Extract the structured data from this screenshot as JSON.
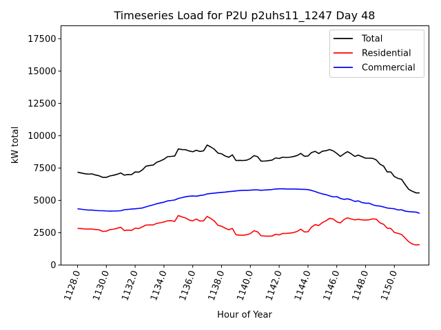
{
  "chart_data": {
    "type": "line",
    "title": "Timeseries Load for P2U p2uhs11_1247  Day 48",
    "xlabel": "Hour of Year",
    "ylabel": "kW total",
    "xlim": [
      1126.85,
      1152.4
    ],
    "ylim": [
      0,
      18500
    ],
    "x_ticks": [
      1128,
      1130,
      1132,
      1134,
      1136,
      1138,
      1140,
      1142,
      1144,
      1146,
      1148,
      1150
    ],
    "x_tick_labels": [
      "1128.0",
      "1130.0",
      "1132.0",
      "1134.0",
      "1136.0",
      "1138.0",
      "1140.0",
      "1142.0",
      "1144.0",
      "1146.0",
      "1148.0",
      "1150.0"
    ],
    "y_ticks": [
      0,
      2500,
      5000,
      7500,
      10000,
      12500,
      15000,
      17500
    ],
    "y_tick_labels": [
      "0",
      "2500",
      "5000",
      "7500",
      "10000",
      "12500",
      "15000",
      "17500"
    ],
    "legend_position": "top-right",
    "x": [
      1128.0,
      1128.25,
      1128.5,
      1128.75,
      1129.0,
      1129.25,
      1129.5,
      1129.75,
      1130.0,
      1130.25,
      1130.5,
      1130.75,
      1131.0,
      1131.25,
      1131.5,
      1131.75,
      1132.0,
      1132.25,
      1132.5,
      1132.75,
      1133.0,
      1133.25,
      1133.5,
      1133.75,
      1134.0,
      1134.25,
      1134.5,
      1134.75,
      1135.0,
      1135.25,
      1135.5,
      1135.75,
      1136.0,
      1136.25,
      1136.5,
      1136.75,
      1137.0,
      1137.25,
      1137.5,
      1137.75,
      1138.0,
      1138.25,
      1138.5,
      1138.75,
      1139.0,
      1139.25,
      1139.5,
      1139.75,
      1140.0,
      1140.25,
      1140.5,
      1140.75,
      1141.0,
      1141.25,
      1141.5,
      1141.75,
      1142.0,
      1142.25,
      1142.5,
      1142.75,
      1143.0,
      1143.25,
      1143.5,
      1143.75,
      1144.0,
      1144.25,
      1144.5,
      1144.75,
      1145.0,
      1145.25,
      1145.5,
      1145.75,
      1146.0,
      1146.25,
      1146.5,
      1146.75,
      1147.0,
      1147.25,
      1147.5,
      1147.75,
      1148.0,
      1148.25,
      1148.5,
      1148.75,
      1149.0,
      1149.25,
      1149.5,
      1149.75,
      1150.0,
      1150.25,
      1150.5,
      1150.75,
      1151.0,
      1151.25,
      1151.5,
      1151.75
    ],
    "series": [
      {
        "name": "Total",
        "color": "#000000",
        "values": [
          7180,
          7120,
          7060,
          7030,
          7050,
          6960,
          6900,
          6780,
          6780,
          6890,
          6940,
          7020,
          7120,
          6950,
          7000,
          6990,
          7200,
          7180,
          7350,
          7640,
          7700,
          7730,
          7950,
          8050,
          8180,
          8380,
          8400,
          8430,
          8980,
          8930,
          8920,
          8820,
          8760,
          8880,
          8780,
          8830,
          9280,
          9130,
          8950,
          8660,
          8600,
          8430,
          8330,
          8520,
          8080,
          8090,
          8080,
          8110,
          8230,
          8460,
          8380,
          8030,
          8040,
          8070,
          8110,
          8280,
          8240,
          8340,
          8320,
          8340,
          8390,
          8470,
          8630,
          8410,
          8430,
          8700,
          8790,
          8620,
          8800,
          8840,
          8930,
          8830,
          8630,
          8400,
          8600,
          8770,
          8600,
          8400,
          8500,
          8380,
          8260,
          8260,
          8250,
          8120,
          7800,
          7650,
          7200,
          7200,
          6840,
          6700,
          6630,
          6220,
          5850,
          5700,
          5580,
          5580
        ]
      },
      {
        "name": "Residential",
        "color": "#ff0000",
        "values": [
          2830,
          2820,
          2790,
          2780,
          2780,
          2750,
          2720,
          2600,
          2620,
          2740,
          2770,
          2840,
          2920,
          2660,
          2700,
          2680,
          2850,
          2820,
          2950,
          3090,
          3100,
          3100,
          3220,
          3270,
          3330,
          3420,
          3430,
          3380,
          3830,
          3720,
          3640,
          3480,
          3420,
          3560,
          3400,
          3420,
          3760,
          3600,
          3400,
          3070,
          3000,
          2850,
          2730,
          2830,
          2340,
          2310,
          2310,
          2340,
          2430,
          2650,
          2570,
          2260,
          2240,
          2230,
          2240,
          2380,
          2330,
          2440,
          2450,
          2470,
          2510,
          2600,
          2770,
          2560,
          2570,
          2940,
          3120,
          3060,
          3280,
          3420,
          3610,
          3560,
          3340,
          3260,
          3520,
          3650,
          3560,
          3490,
          3540,
          3490,
          3480,
          3500,
          3570,
          3540,
          3260,
          3150,
          2850,
          2830,
          2520,
          2450,
          2360,
          2080,
          1800,
          1620,
          1550,
          1580
        ]
      },
      {
        "name": "Commercial",
        "color": "#0000ff",
        "values": [
          4350,
          4320,
          4280,
          4250,
          4250,
          4220,
          4200,
          4200,
          4180,
          4170,
          4180,
          4180,
          4200,
          4280,
          4300,
          4330,
          4350,
          4380,
          4410,
          4500,
          4580,
          4650,
          4740,
          4800,
          4860,
          4960,
          4990,
          5030,
          5150,
          5210,
          5280,
          5320,
          5340,
          5320,
          5380,
          5410,
          5500,
          5530,
          5560,
          5590,
          5620,
          5640,
          5680,
          5700,
          5730,
          5760,
          5780,
          5780,
          5790,
          5810,
          5810,
          5780,
          5800,
          5820,
          5840,
          5880,
          5890,
          5900,
          5880,
          5880,
          5880,
          5870,
          5860,
          5850,
          5830,
          5770,
          5680,
          5580,
          5500,
          5440,
          5350,
          5270,
          5290,
          5150,
          5080,
          5120,
          5040,
          4920,
          4960,
          4830,
          4780,
          4780,
          4660,
          4580,
          4560,
          4490,
          4410,
          4380,
          4350,
          4260,
          4270,
          4170,
          4130,
          4110,
          4090,
          4000
        ]
      }
    ]
  }
}
